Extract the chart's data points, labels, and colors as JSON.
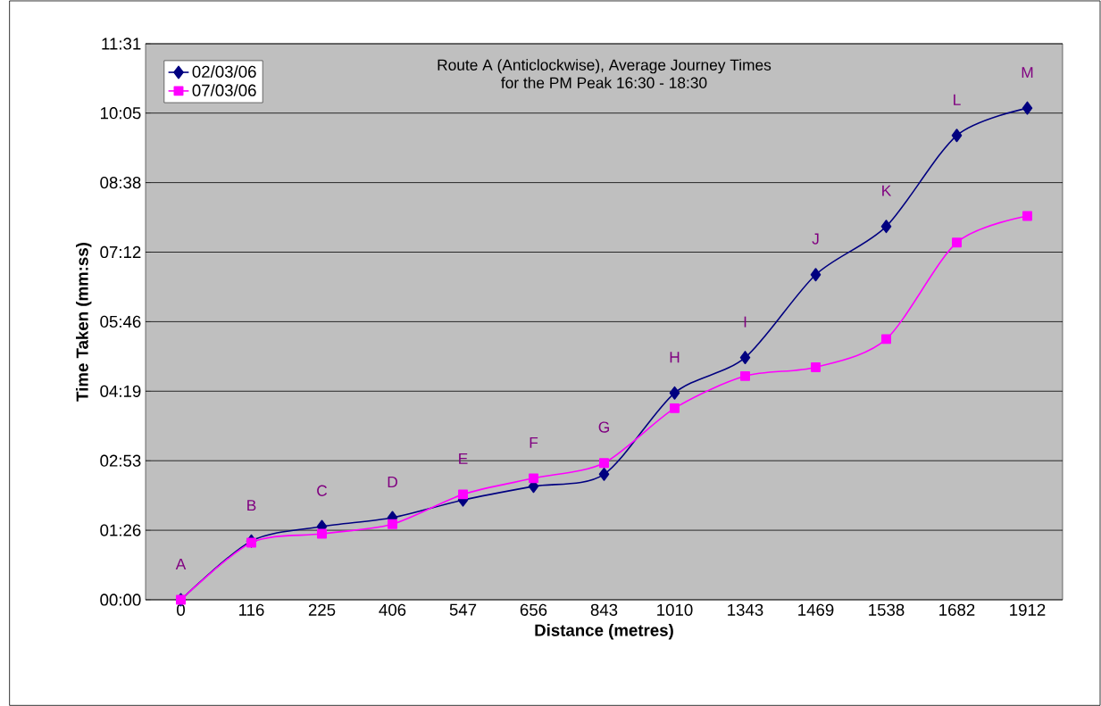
{
  "chart_data": {
    "type": "line",
    "title": "Route A (Anticlockwise), Average Journey Times",
    "subtitle": "for the PM Peak 16:30 - 18:30",
    "xlabel": "Distance (metres)",
    "ylabel": "Time Taken (mm:ss)",
    "categories": [
      "0",
      "116",
      "225",
      "406",
      "547",
      "656",
      "843",
      "1010",
      "1343",
      "1469",
      "1538",
      "1682",
      "1912"
    ],
    "series": [
      {
        "name": "02/03/06",
        "color": "#000080",
        "marker": "diamond",
        "values": [
          0,
          73,
          91,
          102,
          124,
          141,
          156,
          257,
          301,
          404,
          464,
          577,
          611
        ]
      },
      {
        "name": "07/03/06",
        "color": "#ff00ff",
        "marker": "square",
        "values": [
          0,
          71,
          82,
          94,
          131,
          151,
          170,
          238,
          278,
          289,
          324,
          444,
          477
        ]
      }
    ],
    "ylim": [
      0,
      691
    ],
    "yticks": [
      {
        "value": 0,
        "label": "00:00"
      },
      {
        "value": 86.4,
        "label": "01:26"
      },
      {
        "value": 172.8,
        "label": "02:53"
      },
      {
        "value": 259.2,
        "label": "04:19"
      },
      {
        "value": 345.6,
        "label": "05:46"
      },
      {
        "value": 432,
        "label": "07:12"
      },
      {
        "value": 518.4,
        "label": "08:38"
      },
      {
        "value": 604.8,
        "label": "10:05"
      },
      {
        "value": 691,
        "label": "11:31"
      }
    ],
    "grid": "y",
    "legend": "top left",
    "annotations": [
      {
        "text": "A",
        "x": "0",
        "y": 0
      },
      {
        "text": "B",
        "x": "116",
        "y": 73
      },
      {
        "text": "C",
        "x": "225",
        "y": 91
      },
      {
        "text": "D",
        "x": "406",
        "y": 102
      },
      {
        "text": "E",
        "x": "547",
        "y": 131
      },
      {
        "text": "F",
        "x": "656",
        "y": 151
      },
      {
        "text": "G",
        "x": "843",
        "y": 170
      },
      {
        "text": "H",
        "x": "1010",
        "y": 257
      },
      {
        "text": "I",
        "x": "1343",
        "y": 301
      },
      {
        "text": "J",
        "x": "1469",
        "y": 404
      },
      {
        "text": "K",
        "x": "1538",
        "y": 464
      },
      {
        "text": "L",
        "x": "1682",
        "y": 577
      },
      {
        "text": "M",
        "x": "1912",
        "y": 611
      }
    ]
  }
}
